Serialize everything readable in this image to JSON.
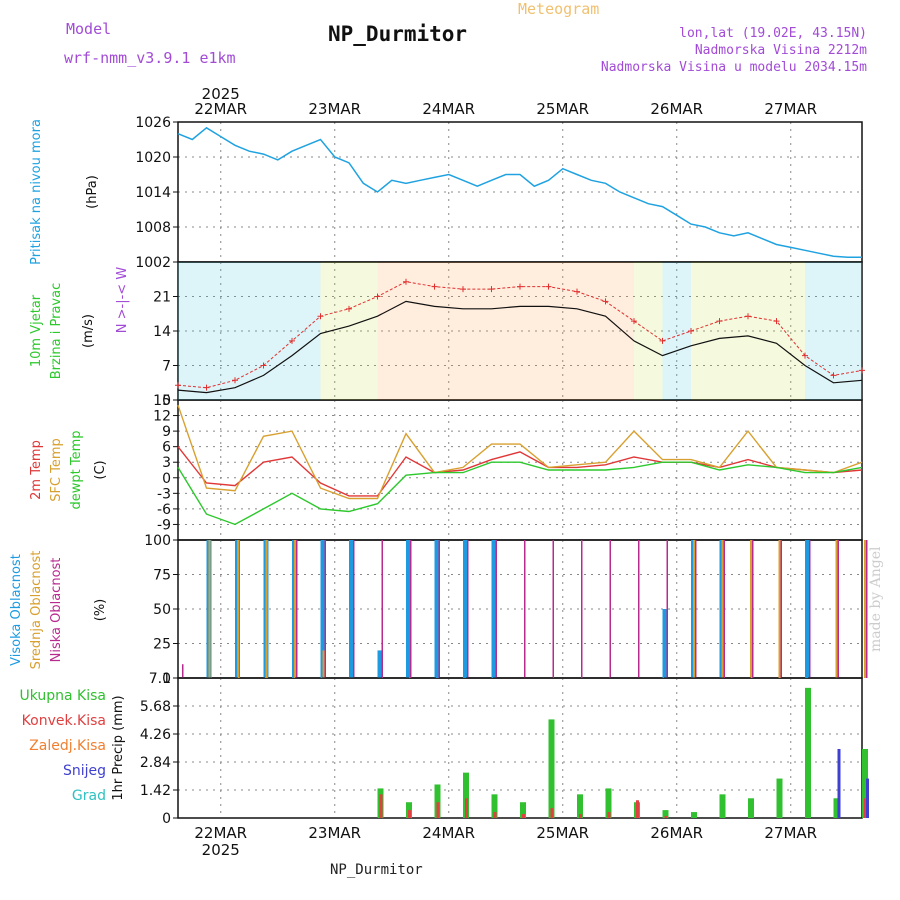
{
  "header": {
    "model_label": "Model",
    "model_name": "wrf-nmm_v3.9.1 e1km",
    "title": "NP_Durmitor",
    "meteogram_label": "Meteogram",
    "location": "lon,lat (19.02E, 43.15N)",
    "altitude": "Nadmorska Visina 2212m",
    "model_altitude": "Nadmorska Visina u modelu 2034.15m"
  },
  "footer": {
    "station": "NP_Durmitor",
    "watermark": "made by Angel"
  },
  "colors": {
    "pressure": "#1fa2e0",
    "wind_speed": "#111111",
    "gust": "#e03030",
    "t2m": "#e03838",
    "tsfc": "#d8a030",
    "dewpoint": "#2cc82c",
    "cloud_high": "#1e9be0",
    "cloud_mid": "#d8a030",
    "cloud_low": "#b82b8e",
    "precip_total": "#30c030",
    "precip_conv": "#e04040",
    "precip_frz": "#f08030",
    "precip_snow": "#4040d0",
    "precip_hail": "#30c0c0",
    "grid": "#888888"
  },
  "chart_data": [
    {
      "type": "line",
      "panel": "pressure",
      "ylabel": [
        "Pritisak na nivou mora",
        "(hPa)"
      ],
      "ylim": [
        1002,
        1026
      ],
      "yticks": [
        1002,
        1008,
        1014,
        1020,
        1026
      ],
      "x_day_labels": [
        "22MAR",
        "23MAR",
        "24MAR",
        "25MAR",
        "26MAR",
        "27MAR"
      ],
      "year_label": "2025",
      "x_hours": [
        0,
        3,
        6,
        9,
        12,
        15,
        18,
        21,
        24,
        27,
        30,
        33,
        36,
        39,
        42,
        45,
        48,
        51,
        54,
        57,
        60,
        63,
        66,
        69,
        72,
        75,
        78,
        81,
        84,
        87,
        90,
        93,
        96,
        99,
        102,
        105,
        108,
        111,
        114,
        117,
        120,
        123,
        126,
        129,
        132,
        135,
        138,
        141,
        144
      ],
      "series": [
        {
          "values": [
            1024.0,
            1023.0,
            1025.0,
            1023.5,
            1022.0,
            1021.0,
            1020.5,
            1019.5,
            1021.0,
            1022.0,
            1023.0,
            1020.0,
            1019.0,
            1015.5,
            1014.0,
            1016.0,
            1015.5,
            1016.0,
            1016.5,
            1017.0,
            1016.0,
            1015.0,
            1016.0,
            1017.0,
            1017.0,
            1015.0,
            1016.0,
            1018.0,
            1017.0,
            1016.0,
            1015.5,
            1014.0,
            1013.0,
            1012.0,
            1011.5,
            1010.0,
            1008.5,
            1008.0,
            1007.0,
            1006.5,
            1007.0,
            1006.0,
            1005.0,
            1004.5,
            1004.0,
            1003.5,
            1003.0,
            1002.8,
            1002.8
          ]
        }
      ]
    },
    {
      "type": "line",
      "panel": "wind",
      "ylabel": [
        "10m Vjetar",
        "Brzina i Pravac",
        "(m/s)"
      ],
      "direction_legend": "N >-|-< W",
      "ylim": [
        0,
        28
      ],
      "yticks": [
        0,
        7,
        14,
        21
      ],
      "x_hours": [
        0,
        6,
        12,
        18,
        24,
        30,
        36,
        42,
        48,
        54,
        60,
        66,
        72,
        78,
        84,
        90,
        96,
        102,
        108,
        114,
        120,
        126,
        132,
        138,
        144
      ],
      "series": [
        {
          "name": "speed",
          "values": [
            2.0,
            1.5,
            2.5,
            5.0,
            9.0,
            13.5,
            15.0,
            17.0,
            20.0,
            19.0,
            18.5,
            18.5,
            19.0,
            19.0,
            18.5,
            17.0,
            12.0,
            9.0,
            11.0,
            12.5,
            13.0,
            11.5,
            7.0,
            3.5,
            4.0
          ]
        },
        {
          "name": "gust",
          "values": [
            3.0,
            2.5,
            4.0,
            7.0,
            12.0,
            17.0,
            18.5,
            21.0,
            24.0,
            23.0,
            22.5,
            22.5,
            23.0,
            23.0,
            22.0,
            20.0,
            16.0,
            12.0,
            14.0,
            16.0,
            17.0,
            16.0,
            9.0,
            5.0,
            6.0
          ]
        }
      ]
    },
    {
      "type": "line",
      "panel": "temperature",
      "ylabel": [
        "2m Temp",
        "SFC Temp",
        "dewpt Temp",
        "(C)"
      ],
      "ylim": [
        -12,
        15
      ],
      "yticks": [
        -9,
        -6,
        -3,
        0,
        3,
        6,
        9,
        12,
        15
      ],
      "x_hours": [
        0,
        6,
        12,
        18,
        24,
        30,
        36,
        42,
        48,
        54,
        60,
        66,
        72,
        78,
        84,
        90,
        96,
        102,
        108,
        114,
        120,
        126,
        132,
        138,
        144
      ],
      "series": [
        {
          "name": "2m Temp",
          "values": [
            6.0,
            -1.0,
            -1.5,
            3.0,
            4.0,
            -1.0,
            -3.5,
            -3.5,
            4.0,
            1.0,
            1.5,
            3.5,
            5.0,
            2.0,
            2.0,
            2.5,
            4.0,
            3.0,
            3.0,
            2.0,
            3.5,
            2.0,
            1.5,
            1.0,
            1.5
          ]
        },
        {
          "name": "SFC Temp",
          "values": [
            14.0,
            -2.0,
            -2.5,
            8.0,
            9.0,
            -2.0,
            -4.0,
            -4.0,
            8.5,
            1.0,
            2.0,
            6.5,
            6.5,
            2.0,
            2.5,
            3.0,
            9.0,
            3.5,
            3.5,
            2.0,
            9.0,
            2.0,
            1.5,
            1.0,
            3.0
          ]
        },
        {
          "name": "dewpt Temp",
          "values": [
            2.0,
            -7.0,
            -9.0,
            -6.0,
            -3.0,
            -6.0,
            -6.5,
            -5.0,
            0.5,
            1.0,
            1.0,
            3.0,
            3.0,
            1.5,
            1.5,
            1.5,
            2.0,
            3.0,
            3.0,
            1.5,
            2.5,
            2.0,
            1.0,
            1.0,
            2.0
          ]
        }
      ]
    },
    {
      "type": "bar",
      "panel": "cloud",
      "ylabel": [
        "Visoka Oblacnost",
        "Srednja Oblacnost",
        "Niska Oblacnost",
        "(%)"
      ],
      "ylim": [
        0,
        100
      ],
      "yticks": [
        0,
        25,
        50,
        75,
        100
      ],
      "x_hours": [
        0,
        6,
        12,
        18,
        24,
        30,
        36,
        42,
        48,
        54,
        60,
        66,
        72,
        78,
        84,
        90,
        96,
        102,
        108,
        114,
        120,
        126,
        132,
        138,
        144
      ],
      "series": [
        {
          "name": "Visoka Oblacnost",
          "values": [
            0,
            100,
            100,
            100,
            100,
            100,
            100,
            20,
            100,
            100,
            100,
            100,
            0,
            0,
            0,
            0,
            0,
            50,
            100,
            100,
            0,
            0,
            100,
            0,
            0
          ]
        },
        {
          "name": "Srednja Oblacnost",
          "values": [
            0,
            100,
            100,
            100,
            100,
            20,
            0,
            0,
            0,
            0,
            0,
            0,
            0,
            0,
            0,
            0,
            0,
            0,
            100,
            100,
            100,
            100,
            0,
            100,
            100
          ]
        },
        {
          "name": "Niska Oblacnost",
          "values": [
            10,
            0,
            0,
            0,
            100,
            100,
            100,
            100,
            100,
            100,
            100,
            100,
            100,
            100,
            100,
            100,
            100,
            100,
            100,
            100,
            100,
            100,
            100,
            100,
            100
          ]
        }
      ]
    },
    {
      "type": "bar",
      "panel": "precipitation",
      "ylabel": [
        "1hr Precip (mm)"
      ],
      "legend": [
        "Ukupna Kisa",
        "Konvek.Kisa",
        "Zaledj.Kisa",
        "Snijeg",
        "Grad"
      ],
      "ylim": [
        0,
        7.1
      ],
      "yticks": [
        0,
        1.42,
        2.84,
        4.26,
        5.68,
        7.1
      ],
      "x_hours": [
        0,
        6,
        12,
        18,
        24,
        30,
        36,
        42,
        48,
        54,
        60,
        66,
        72,
        78,
        84,
        90,
        96,
        102,
        108,
        114,
        120,
        126,
        132,
        138,
        144
      ],
      "series": [
        {
          "name": "Ukupna Kisa",
          "values": [
            0,
            0,
            0,
            0,
            0,
            0,
            0,
            1.5,
            0.8,
            1.7,
            2.3,
            1.2,
            0.8,
            5.0,
            1.2,
            1.5,
            0.8,
            0.4,
            0.3,
            1.2,
            1.0,
            2.0,
            6.6,
            1.0,
            3.5
          ]
        },
        {
          "name": "Konvek.Kisa",
          "values": [
            0,
            0,
            0,
            0,
            0,
            0,
            0,
            1.2,
            0.4,
            0.8,
            1.0,
            0.3,
            0.2,
            0.5,
            0.2,
            0.3,
            0.9,
            0.1,
            0,
            0,
            0,
            0,
            0,
            0,
            1.0
          ]
        },
        {
          "name": "Snijeg",
          "values": [
            0,
            0,
            0,
            0,
            0,
            0,
            0,
            0,
            0,
            0,
            0,
            0,
            0,
            0,
            0,
            0,
            0,
            0,
            0,
            0,
            0,
            0,
            0,
            3.5,
            2.0
          ]
        }
      ]
    }
  ]
}
